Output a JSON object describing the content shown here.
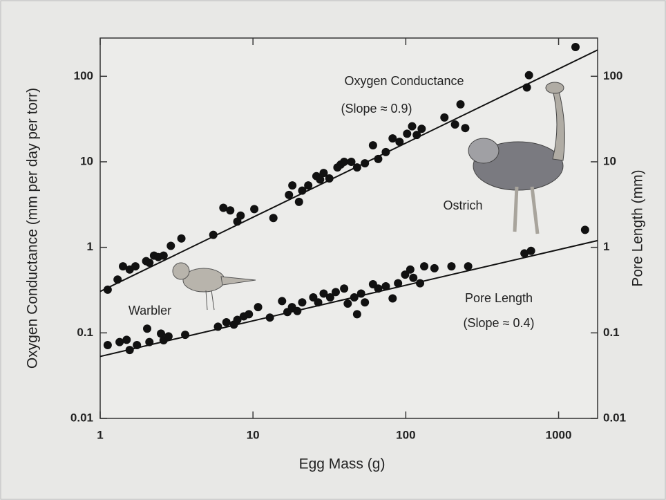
{
  "chart_data": {
    "type": "scatter",
    "x_label": "Egg Mass (g)",
    "y_label": "Oxygen Conductance (mm per day per torr)",
    "y2_label": "Pore Length (mm)",
    "log_x": true,
    "log_y": true,
    "xlim": [
      1,
      1800
    ],
    "xticks": [
      1,
      10,
      100,
      1000
    ],
    "ylim": [
      0.01,
      280
    ],
    "yticks": [
      0.01,
      0.1,
      1,
      10,
      100
    ],
    "y2lim": [
      0.01,
      280
    ],
    "y2ticks": [
      0.01,
      0.1,
      1,
      10,
      100
    ],
    "annotations": [
      "Warbler",
      "Ostrich"
    ],
    "series": [
      {
        "name": "Oxygen Conductance",
        "slope_label": "(Slope ≈ 0.9)",
        "color": "#111111",
        "x": [
          1.12,
          1.3,
          1.41,
          1.56,
          1.7,
          2.0,
          2.1,
          2.25,
          2.4,
          2.6,
          2.9,
          3.4,
          5.5,
          6.4,
          7.1,
          7.9,
          8.3,
          10.2,
          13.6,
          17.2,
          18.1,
          20,
          21,
          23,
          26,
          27.5,
          29,
          31.6,
          35.7,
          37.5,
          39.5,
          44,
          48,
          54,
          61,
          66,
          74,
          82,
          91,
          102,
          110,
          118,
          127,
          179,
          210,
          228,
          245,
          620,
          640,
          1290
        ],
        "values": [
          0.32,
          0.42,
          0.6,
          0.55,
          0.6,
          0.69,
          0.66,
          0.8,
          0.77,
          0.8,
          1.04,
          1.27,
          1.4,
          2.9,
          2.7,
          2.0,
          2.35,
          2.8,
          2.2,
          4.1,
          5.3,
          3.4,
          4.6,
          5.3,
          6.8,
          6.2,
          7.4,
          6.4,
          8.6,
          9.3,
          10,
          10,
          8.6,
          9.6,
          15.6,
          10.8,
          13,
          18.8,
          17.1,
          21.3,
          26,
          20.6,
          24.3,
          33,
          27.3,
          47,
          24.8,
          74,
          103,
          220
        ],
        "fit": {
          "x": [
            1,
            1800
          ],
          "values": [
            0.305,
            203
          ]
        }
      },
      {
        "name": "Pore Length",
        "slope_label": "(Slope ≈ 0.4)",
        "color": "#111111",
        "axis": "y2",
        "x": [
          1.12,
          1.34,
          1.49,
          1.56,
          1.74,
          2.03,
          2.1,
          2.5,
          2.6,
          2.8,
          3.6,
          5.9,
          6.7,
          7.5,
          7.9,
          8.7,
          9.4,
          10.8,
          12.9,
          15.5,
          16.8,
          18,
          19.5,
          21,
          24.8,
          26.7,
          29,
          32,
          34.8,
          39.5,
          41.7,
          46,
          48,
          51,
          54,
          61,
          66,
          74,
          82,
          89,
          99,
          107,
          112,
          124,
          132,
          154,
          199,
          256,
          598,
          660,
          1490
        ],
        "values": [
          0.072,
          0.078,
          0.083,
          0.063,
          0.072,
          0.112,
          0.078,
          0.098,
          0.082,
          0.091,
          0.095,
          0.118,
          0.133,
          0.125,
          0.142,
          0.156,
          0.165,
          0.2,
          0.151,
          0.235,
          0.175,
          0.2,
          0.18,
          0.227,
          0.26,
          0.227,
          0.288,
          0.26,
          0.3,
          0.33,
          0.22,
          0.26,
          0.165,
          0.288,
          0.227,
          0.37,
          0.33,
          0.35,
          0.253,
          0.38,
          0.48,
          0.55,
          0.44,
          0.38,
          0.6,
          0.57,
          0.6,
          0.6,
          0.85,
          0.91,
          1.6
        ],
        "fit": {
          "x": [
            1,
            1800
          ],
          "values": [
            0.053,
            1.2
          ]
        }
      }
    ]
  }
}
